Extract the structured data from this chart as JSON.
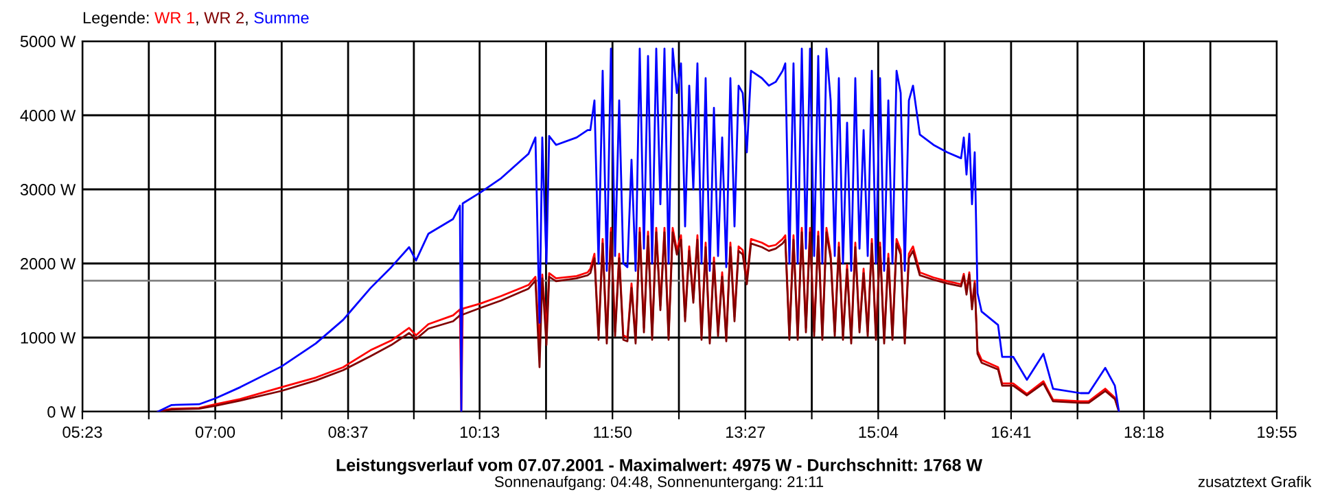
{
  "chart_data": {
    "type": "line",
    "title": "Leistungsverlauf vom 07.07.2001 - Maximalwert: 4975 W - Durchschnitt: 1768 W",
    "subtitle": "Sonnenaufgang: 04:48, Sonnenuntergang: 21:11",
    "legend_title": "Legende:",
    "grid": true,
    "marker": "none",
    "line_style": "solid",
    "annotations": [
      "zusatztext Grafik",
      ",",
      ","
    ],
    "xlim": [
      5.3833,
      19.9167
    ],
    "xticks": [
      {
        "value": 5.3833,
        "label": "05:23"
      },
      {
        "value": 6.1917,
        "label": null
      },
      {
        "value": 7.0,
        "label": "07:00"
      },
      {
        "value": 7.8083,
        "label": null
      },
      {
        "value": 8.6167,
        "label": "08:37"
      },
      {
        "value": 9.4167,
        "label": null
      },
      {
        "value": 10.2167,
        "label": "10:13"
      },
      {
        "value": 11.025,
        "label": null
      },
      {
        "value": 11.8333,
        "label": "11:50"
      },
      {
        "value": 12.6417,
        "label": null
      },
      {
        "value": 13.45,
        "label": "13:27"
      },
      {
        "value": 14.2583,
        "label": null
      },
      {
        "value": 15.0667,
        "label": "15:04"
      },
      {
        "value": 15.875,
        "label": null
      },
      {
        "value": 16.6833,
        "label": "16:41"
      },
      {
        "value": 17.4917,
        "label": null
      },
      {
        "value": 18.3,
        "label": "18:18"
      },
      {
        "value": 19.1083,
        "label": null
      },
      {
        "value": 19.9167,
        "label": "19:55"
      }
    ],
    "ylim": [
      0,
      5000
    ],
    "yticks": [
      {
        "value": 0,
        "label": "0 W"
      },
      {
        "value": 1000,
        "label": "1000 W"
      },
      {
        "value": 2000,
        "label": "2000 W"
      },
      {
        "value": 3000,
        "label": "3000 W"
      },
      {
        "value": 4000,
        "label": "4000 W"
      },
      {
        "value": 5000,
        "label": "5000 W"
      }
    ],
    "ref_lines": [
      {
        "axis": "y",
        "value": 1768,
        "color": "#808080"
      }
    ],
    "x": [
      6.302,
      6.469,
      6.803,
      7.004,
      7.304,
      7.806,
      8.223,
      8.557,
      8.891,
      9.142,
      9.359,
      9.443,
      9.593,
      9.894,
      9.977,
      9.994,
      10.011,
      10.228,
      10.478,
      10.812,
      10.896,
      10.946,
      10.979,
      11.03,
      11.063,
      11.147,
      11.397,
      11.531,
      11.564,
      11.614,
      11.664,
      11.714,
      11.764,
      11.815,
      11.865,
      11.915,
      11.965,
      12.015,
      12.065,
      12.115,
      12.165,
      12.216,
      12.266,
      12.316,
      12.366,
      12.416,
      12.466,
      12.516,
      12.566,
      12.617,
      12.667,
      12.717,
      12.767,
      12.817,
      12.867,
      12.917,
      12.967,
      13.017,
      13.068,
      13.118,
      13.168,
      13.218,
      13.268,
      13.318,
      13.368,
      13.418,
      13.468,
      13.519,
      13.652,
      13.736,
      13.819,
      13.903,
      13.936,
      13.986,
      14.036,
      14.087,
      14.137,
      14.187,
      14.237,
      14.287,
      14.337,
      14.387,
      14.437,
      14.488,
      14.538,
      14.588,
      14.638,
      14.688,
      14.738,
      14.788,
      14.839,
      14.889,
      14.939,
      14.989,
      15.039,
      15.089,
      15.139,
      15.19,
      15.24,
      15.29,
      15.34,
      15.39,
      15.44,
      15.49,
      15.573,
      15.74,
      15.907,
      16.075,
      16.108,
      16.141,
      16.175,
      16.208,
      16.241,
      16.275,
      16.325,
      16.525,
      16.575,
      16.709,
      16.876,
      17.077,
      17.194,
      17.528,
      17.628,
      17.829,
      17.946,
      17.996
    ],
    "series": [
      {
        "name": "WR 1",
        "color": "#ff0000",
        "values": [
          0,
          40,
          50,
          100,
          170,
          330,
          460,
          600,
          830,
          960,
          1130,
          1030,
          1180,
          1300,
          1380,
          0,
          1390,
          1460,
          1560,
          1710,
          1820,
          900,
          1850,
          1100,
          1870,
          1800,
          1830,
          1880,
          1930,
          2130,
          1030,
          2330,
          980,
          2480,
          1080,
          2130,
          1030,
          1000,
          1730,
          980,
          2480,
          1130,
          2430,
          1030,
          2480,
          1430,
          2480,
          1030,
          2480,
          2180,
          2380,
          1280,
          2230,
          1530,
          2380,
          1030,
          2280,
          980,
          2080,
          1080,
          1880,
          1000,
          2280,
          1280,
          2230,
          2180,
          1780,
          2330,
          2280,
          2230,
          2250,
          2330,
          2380,
          1030,
          2380,
          1030,
          2480,
          1130,
          2480,
          1080,
          2430,
          1030,
          2480,
          2130,
          1080,
          2280,
          1030,
          1980,
          980,
          2280,
          1130,
          1930,
          1080,
          2330,
          1030,
          2280,
          980,
          2130,
          1030,
          2330,
          2180,
          980,
          2130,
          2230,
          1880,
          1810,
          1760,
          1720,
          1860,
          1620,
          1880,
          1420,
          1760,
          820,
          700,
          600,
          380,
          380,
          240,
          410,
          160,
          140,
          140,
          310,
          190,
          0
        ]
      },
      {
        "name": "WR 2",
        "color": "#800000",
        "values": [
          0,
          30,
          40,
          80,
          150,
          280,
          420,
          560,
          750,
          900,
          1060,
          980,
          1120,
          1220,
          1300,
          1300,
          1310,
          1400,
          1500,
          1660,
          1770,
          600,
          1800,
          900,
          1820,
          1760,
          1800,
          1840,
          1870,
          2070,
          970,
          2270,
          920,
          2420,
          1020,
          2070,
          970,
          950,
          1670,
          920,
          2420,
          1070,
          2370,
          970,
          2420,
          1370,
          2420,
          970,
          2420,
          2120,
          2320,
          1220,
          2170,
          1470,
          2320,
          970,
          2220,
          920,
          2020,
          1020,
          1820,
          950,
          2220,
          1220,
          2170,
          2120,
          1720,
          2270,
          2220,
          2170,
          2200,
          2270,
          2320,
          970,
          2320,
          970,
          2420,
          1070,
          2420,
          1020,
          2370,
          970,
          2420,
          2070,
          1020,
          2220,
          970,
          1920,
          920,
          2220,
          1070,
          1870,
          1020,
          2270,
          970,
          2220,
          920,
          2070,
          970,
          2270,
          2120,
          920,
          2070,
          2170,
          1840,
          1780,
          1730,
          1690,
          1830,
          1580,
          1850,
          1380,
          1730,
          780,
          660,
          570,
          350,
          350,
          220,
          380,
          140,
          120,
          120,
          280,
          170,
          0
        ]
      },
      {
        "name": "Summe",
        "color": "#0000ff",
        "values": [
          0,
          90,
          100,
          180,
          330,
          610,
          920,
          1240,
          1670,
          1950,
          2220,
          2040,
          2400,
          2600,
          2780,
          0,
          2810,
          2960,
          3150,
          3480,
          3700,
          1200,
          3700,
          2000,
          3720,
          3600,
          3700,
          3800,
          3800,
          4200,
          2000,
          4600,
          1900,
          4900,
          2100,
          4200,
          2000,
          1950,
          3400,
          1900,
          4900,
          2200,
          4800,
          2000,
          4900,
          2800,
          4900,
          2000,
          4900,
          4300,
          4700,
          2500,
          4400,
          3000,
          4700,
          2000,
          4500,
          1900,
          4100,
          2100,
          3700,
          1950,
          4500,
          2500,
          4400,
          4300,
          3500,
          4600,
          4500,
          4400,
          4450,
          4600,
          4700,
          2000,
          4700,
          2000,
          4900,
          2200,
          4900,
          2100,
          4800,
          2000,
          4900,
          4200,
          2100,
          4500,
          2000,
          3900,
          1900,
          4500,
          2200,
          3800,
          2100,
          4600,
          2000,
          4500,
          1900,
          4200,
          2000,
          4600,
          4300,
          1900,
          4200,
          4400,
          3740,
          3600,
          3500,
          3420,
          3700,
          3200,
          3750,
          2800,
          3500,
          1600,
          1350,
          1170,
          740,
          740,
          430,
          780,
          310,
          250,
          250,
          590,
          350,
          0
        ]
      }
    ]
  }
}
